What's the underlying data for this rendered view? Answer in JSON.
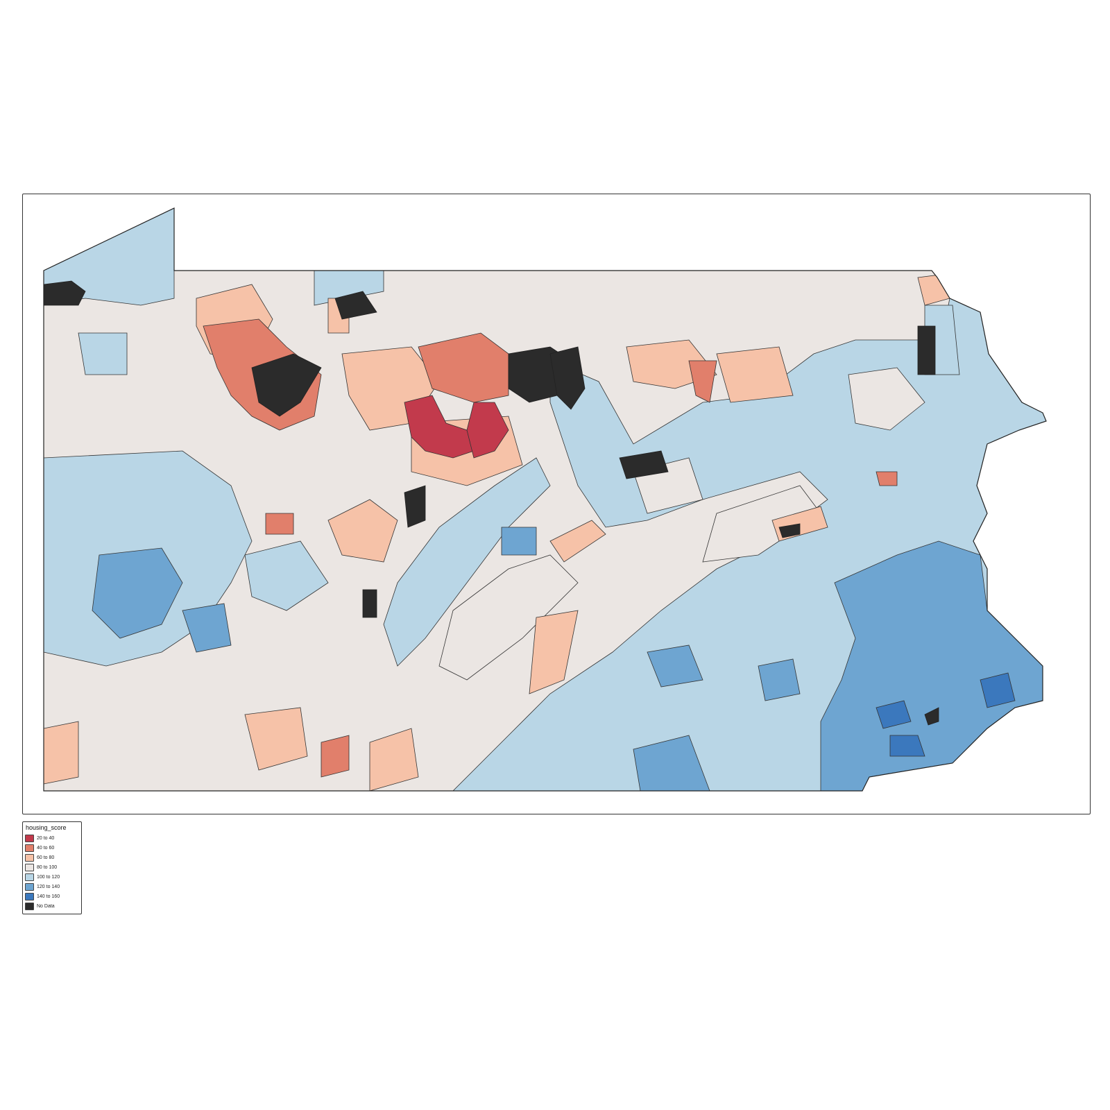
{
  "legend": {
    "title": "housing_score",
    "items": [
      {
        "label": "20 to 40",
        "color": "#c23a4c",
        "name": "legend-item-20-40"
      },
      {
        "label": "40 to 60",
        "color": "#e17f6b",
        "name": "legend-item-40-60"
      },
      {
        "label": "60 to 80",
        "color": "#f6c2a8",
        "name": "legend-item-60-80"
      },
      {
        "label": "80 to 100",
        "color": "#ebe6e3",
        "name": "legend-item-80-100"
      },
      {
        "label": "100 to 120",
        "color": "#b9d6e6",
        "name": "legend-item-100-120"
      },
      {
        "label": "120 to 140",
        "color": "#6ea5d1",
        "name": "legend-item-120-140"
      },
      {
        "label": "140 to 160",
        "color": "#3b78bd",
        "name": "legend-item-140-160"
      },
      {
        "label": "No Data",
        "color": "#2b2b2b",
        "name": "legend-item-no-data"
      }
    ]
  },
  "colors": {
    "border": "#333333",
    "outline": "#222222"
  }
}
